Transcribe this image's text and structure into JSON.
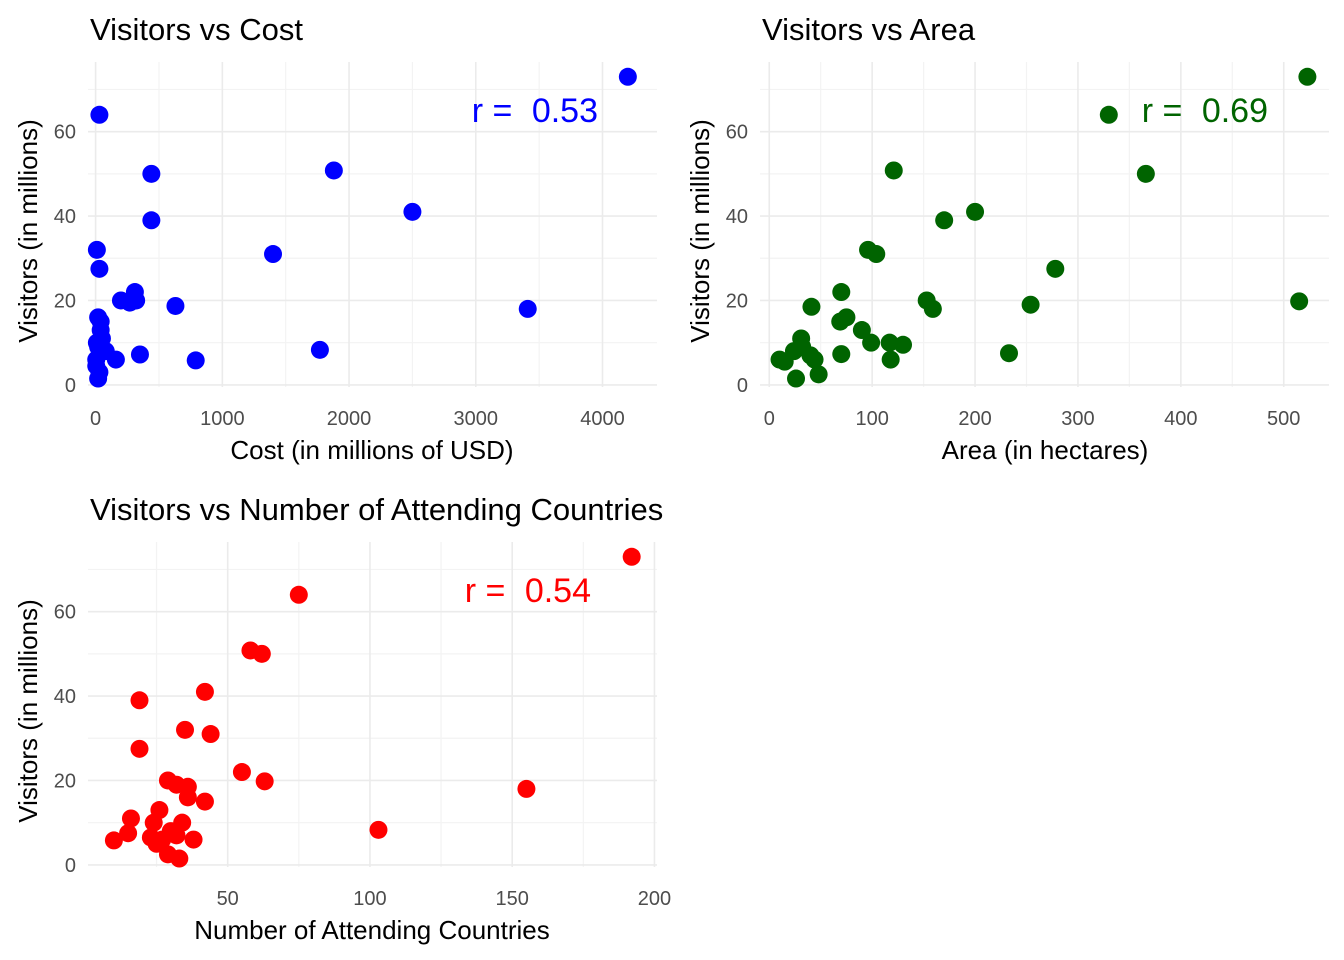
{
  "chart_data": [
    {
      "type": "scatter",
      "title": "Visitors vs Cost",
      "xlabel": "Cost (in millions of USD)",
      "ylabel": "Visitors (in millions)",
      "annotation": {
        "prefix": "r = ",
        "value": "0.53"
      },
      "color": "#0000ff",
      "xlim": [
        -60,
        4430
      ],
      "ylim": [
        -0.5,
        76.5
      ],
      "xticks": [
        0,
        1000,
        2000,
        3000,
        4000
      ],
      "xminor": [
        500,
        1500,
        2500,
        3500
      ],
      "yticks": [
        0,
        20,
        40,
        60
      ],
      "yminor": [
        10,
        30,
        50,
        70
      ],
      "grid": true,
      "points": [
        {
          "x": 4200,
          "y": 73
        },
        {
          "x": 30,
          "y": 64
        },
        {
          "x": 440,
          "y": 50
        },
        {
          "x": 1880,
          "y": 50.8
        },
        {
          "x": 2500,
          "y": 41
        },
        {
          "x": 440,
          "y": 39
        },
        {
          "x": 1400,
          "y": 31
        },
        {
          "x": 10,
          "y": 32
        },
        {
          "x": 30,
          "y": 27.5
        },
        {
          "x": 310,
          "y": 22
        },
        {
          "x": 200,
          "y": 20
        },
        {
          "x": 320,
          "y": 20
        },
        {
          "x": 270,
          "y": 19.5
        },
        {
          "x": 630,
          "y": 18.7
        },
        {
          "x": 3410,
          "y": 18
        },
        {
          "x": 20,
          "y": 16
        },
        {
          "x": 40,
          "y": 15
        },
        {
          "x": 40,
          "y": 13
        },
        {
          "x": 50,
          "y": 11
        },
        {
          "x": 10,
          "y": 10
        },
        {
          "x": 20,
          "y": 9
        },
        {
          "x": 80,
          "y": 8
        },
        {
          "x": 1770,
          "y": 8.3
        },
        {
          "x": 350,
          "y": 7.2
        },
        {
          "x": 160,
          "y": 6
        },
        {
          "x": 5,
          "y": 6
        },
        {
          "x": 790,
          "y": 5.8
        },
        {
          "x": 5,
          "y": 4.5
        },
        {
          "x": 30,
          "y": 3
        },
        {
          "x": 20,
          "y": 1.5
        }
      ]
    },
    {
      "type": "scatter",
      "title": "Visitors vs Area",
      "xlabel": "Area (in hectares)",
      "ylabel": "Visitors (in millions)",
      "annotation": {
        "prefix": "r = ",
        "value": "0.69"
      },
      "color": "#006400",
      "xlim": [
        -9,
        544
      ],
      "ylim": [
        -0.5,
        76.5
      ],
      "xticks": [
        0,
        100,
        200,
        300,
        400,
        500
      ],
      "xminor": [
        50,
        150,
        250,
        350,
        450
      ],
      "yticks": [
        0,
        20,
        40,
        60
      ],
      "yminor": [
        10,
        30,
        50,
        70
      ],
      "grid": true,
      "points": [
        {
          "x": 523,
          "y": 73
        },
        {
          "x": 330,
          "y": 64
        },
        {
          "x": 366,
          "y": 50
        },
        {
          "x": 121,
          "y": 50.8
        },
        {
          "x": 200,
          "y": 41
        },
        {
          "x": 170,
          "y": 39
        },
        {
          "x": 96,
          "y": 32
        },
        {
          "x": 104,
          "y": 31
        },
        {
          "x": 278,
          "y": 27.5
        },
        {
          "x": 70,
          "y": 22
        },
        {
          "x": 153,
          "y": 20
        },
        {
          "x": 515,
          "y": 19.8
        },
        {
          "x": 254,
          "y": 19
        },
        {
          "x": 159,
          "y": 18
        },
        {
          "x": 41,
          "y": 18.5
        },
        {
          "x": 75,
          "y": 16
        },
        {
          "x": 69,
          "y": 15
        },
        {
          "x": 90,
          "y": 13
        },
        {
          "x": 31,
          "y": 11
        },
        {
          "x": 99,
          "y": 10
        },
        {
          "x": 117,
          "y": 10
        },
        {
          "x": 130,
          "y": 9.5
        },
        {
          "x": 32,
          "y": 9
        },
        {
          "x": 24,
          "y": 8
        },
        {
          "x": 40,
          "y": 7
        },
        {
          "x": 70,
          "y": 7.3
        },
        {
          "x": 233,
          "y": 7.5
        },
        {
          "x": 10,
          "y": 6
        },
        {
          "x": 44,
          "y": 6
        },
        {
          "x": 118,
          "y": 6
        },
        {
          "x": 15,
          "y": 5.5
        },
        {
          "x": 48,
          "y": 2.5
        },
        {
          "x": 26,
          "y": 1.5
        }
      ]
    },
    {
      "type": "scatter",
      "title": "Visitors vs Number of Attending Countries",
      "xlabel": "Number of Attending Countries",
      "ylabel": "Visitors (in millions)",
      "annotation": {
        "prefix": "r = ",
        "value": "0.54"
      },
      "color": "#ff0000",
      "xlim": [
        0.9,
        200.9
      ],
      "ylim": [
        -0.5,
        76.5
      ],
      "xticks": [
        50,
        100,
        150,
        200
      ],
      "xminor": [
        25,
        75,
        125,
        175
      ],
      "yticks": [
        0,
        20,
        40,
        60
      ],
      "yminor": [
        10,
        30,
        50,
        70
      ],
      "grid": true,
      "points": [
        {
          "x": 192,
          "y": 73
        },
        {
          "x": 75,
          "y": 64
        },
        {
          "x": 58,
          "y": 50.8
        },
        {
          "x": 62,
          "y": 50
        },
        {
          "x": 42,
          "y": 41
        },
        {
          "x": 19,
          "y": 39
        },
        {
          "x": 35,
          "y": 32
        },
        {
          "x": 44,
          "y": 31
        },
        {
          "x": 19,
          "y": 27.5
        },
        {
          "x": 55,
          "y": 22
        },
        {
          "x": 29,
          "y": 20
        },
        {
          "x": 63,
          "y": 19.8
        },
        {
          "x": 32,
          "y": 19
        },
        {
          "x": 36,
          "y": 18.5
        },
        {
          "x": 155,
          "y": 18
        },
        {
          "x": 36,
          "y": 16
        },
        {
          "x": 42,
          "y": 15
        },
        {
          "x": 26,
          "y": 13
        },
        {
          "x": 16,
          "y": 11
        },
        {
          "x": 24,
          "y": 10
        },
        {
          "x": 34,
          "y": 10
        },
        {
          "x": 30,
          "y": 8
        },
        {
          "x": 103,
          "y": 8.3
        },
        {
          "x": 15,
          "y": 7.5
        },
        {
          "x": 32,
          "y": 7
        },
        {
          "x": 23,
          "y": 6.5
        },
        {
          "x": 27,
          "y": 6
        },
        {
          "x": 38,
          "y": 6
        },
        {
          "x": 10,
          "y": 5.8
        },
        {
          "x": 25,
          "y": 5
        },
        {
          "x": 29,
          "y": 2.5
        },
        {
          "x": 33,
          "y": 1.5
        }
      ]
    }
  ]
}
